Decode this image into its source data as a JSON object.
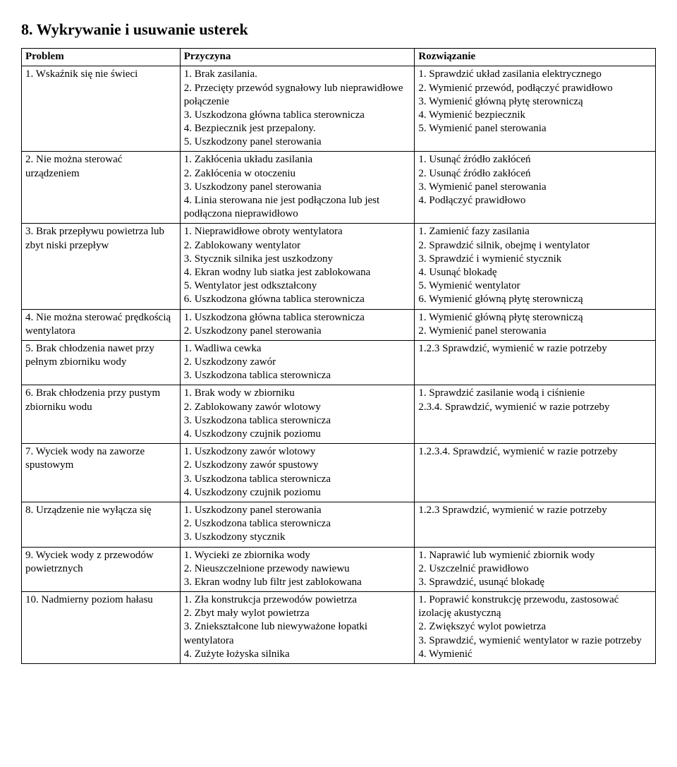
{
  "title": "8. Wykrywanie i usuwanie usterek",
  "headers": {
    "problem": "Problem",
    "cause": "Przyczyna",
    "solution": "Rozwiązanie"
  },
  "rows": [
    {
      "problem": "1. Wskaźnik się nie świeci",
      "cause": "1. Brak zasilania.\n2. Przecięty przewód sygnałowy lub nieprawidłowe połączenie\n3. Uszkodzona główna tablica sterownicza\n4. Bezpiecznik jest przepalony.\n5. Uszkodzony panel sterowania",
      "solution": "1. Sprawdzić układ zasilania elektrycznego\n2. Wymienić przewód, podłączyć prawidłowo\n3. Wymienić główną płytę sterowniczą\n4. Wymienić bezpiecznik\n5. Wymienić panel sterowania"
    },
    {
      "problem": "2. Nie można sterować urządzeniem",
      "cause": "1. Zakłócenia układu zasilania\n2. Zakłócenia w otoczeniu\n3. Uszkodzony panel sterowania\n4. Linia sterowana nie jest podłączona lub jest podłączona nieprawidłowo",
      "solution": "1. Usunąć źródło zakłóceń\n2. Usunąć źródło zakłóceń\n3. Wymienić panel sterowania\n4. Podłączyć prawidłowo"
    },
    {
      "problem": "3. Brak przepływu powietrza lub zbyt niski przepływ",
      "cause": "1. Nieprawidłowe obroty wentylatora\n2. Zablokowany wentylator\n3. Stycznik silnika jest uszkodzony\n4. Ekran wodny lub siatka jest zablokowana\n5. Wentylator jest odkształcony\n6. Uszkodzona główna tablica sterownicza",
      "solution": "1. Zamienić fazy zasilania\n2. Sprawdzić silnik, obejmę i wentylator\n3. Sprawdzić i wymienić stycznik\n4. Usunąć blokadę\n5. Wymienić wentylator\n6. Wymienić główną płytę sterowniczą"
    },
    {
      "problem": "4. Nie można sterować prędkością wentylatora",
      "cause": "1. Uszkodzona główna tablica sterownicza\n2. Uszkodzony panel sterowania",
      "solution": "1. Wymienić główną płytę sterowniczą\n2. Wymienić panel sterowania"
    },
    {
      "problem": "5. Brak chłodzenia nawet przy pełnym zbiorniku wody",
      "cause": "1. Wadliwa cewka\n2. Uszkodzony zawór\n3. Uszkodzona tablica sterownicza",
      "solution": "1.2.3 Sprawdzić, wymienić w razie potrzeby"
    },
    {
      "problem": "6. Brak chłodzenia przy pustym zbiorniku wodu",
      "cause": "1. Brak wody w zbiorniku\n2. Zablokowany zawór wlotowy\n3. Uszkodzona tablica sterownicza\n4. Uszkodzony czujnik poziomu",
      "solution": "1. Sprawdzić zasilanie wodą i ciśnienie\n2.3.4. Sprawdzić, wymienić w razie potrzeby"
    },
    {
      "problem": "7. Wyciek wody na zaworze spustowym",
      "cause": "1. Uszkodzony zawór wlotowy\n2. Uszkodzony zawór spustowy\n3. Uszkodzona tablica sterownicza\n4. Uszkodzony czujnik poziomu",
      "solution": "1.2.3.4. Sprawdzić, wymienić w razie potrzeby"
    },
    {
      "problem": "8. Urządzenie nie wyłącza się",
      "cause": "1. Uszkodzony panel sterowania\n2. Uszkodzona tablica sterownicza\n3. Uszkodzony stycznik",
      "solution": "1.2.3 Sprawdzić, wymienić w razie potrzeby"
    },
    {
      "problem": "9. Wyciek wody z przewodów powietrznych",
      "cause": "1. Wycieki ze zbiornika wody\n2. Nieuszczelnione przewody nawiewu\n3. Ekran wodny lub filtr jest zablokowana",
      "solution": "1. Naprawić lub wymienić zbiornik wody\n2. Uszczelnić prawidłowo\n3. Sprawdzić, usunąć blokadę"
    },
    {
      "problem": "10. Nadmierny poziom hałasu",
      "cause": "1. Zła konstrukcja przewodów powietrza\n2. Zbyt mały wylot powietrza\n3. Zniekształcone lub niewyważone łopatki wentylatora\n4. Zużyte łożyska silnika",
      "solution": "1. Poprawić konstrukcję przewodu, zastosować izolację akustyczną\n2. Zwiększyć wylot powietrza\n3. Sprawdzić, wymienić wentylator w razie potrzeby\n4. Wymienić"
    }
  ]
}
